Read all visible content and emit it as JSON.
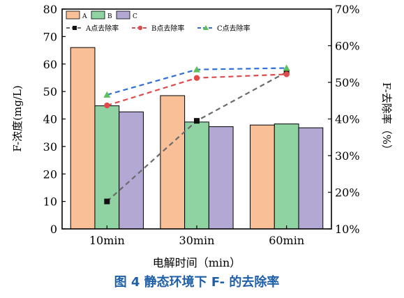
{
  "chart_data": {
    "type": "bar",
    "caption": "图 4   静态环境下 F- 的去除率",
    "xlabel": "电解时间（min）",
    "ylabel": "F-浓度(mg/L)",
    "y2label": "F-去除率（%）",
    "categories": [
      "10min",
      "30min",
      "60min"
    ],
    "ylim": [
      0,
      80
    ],
    "yticks": [
      0,
      10,
      20,
      30,
      40,
      50,
      60,
      70,
      80
    ],
    "y2lim": [
      10,
      70
    ],
    "y2ticks": [
      "10%",
      "20%",
      "30%",
      "40%",
      "50%",
      "60%",
      "70%"
    ],
    "y2tick_values": [
      10,
      20,
      30,
      40,
      50,
      60,
      70
    ],
    "bar_series": [
      {
        "name": "A",
        "values": [
          66.0,
          48.5,
          37.8
        ],
        "color": "#f9bf96"
      },
      {
        "name": "B",
        "values": [
          44.8,
          38.9,
          38.2
        ],
        "color": "#8fd3a2"
      },
      {
        "name": "C",
        "values": [
          42.6,
          37.2,
          36.8
        ],
        "color": "#b3a8d3"
      }
    ],
    "line_series": [
      {
        "name": "A点去除率",
        "values": [
          17.5,
          39.5,
          52.8
        ],
        "color": "#6b6b6b",
        "marker": "square"
      },
      {
        "name": "B点去除率",
        "values": [
          43.7,
          51.2,
          52.2
        ],
        "color": "#e04a4a",
        "marker": "circle"
      },
      {
        "name": "C点去除率",
        "values": [
          46.6,
          53.5,
          53.9
        ],
        "color": "#2f6fd6",
        "marker": "triangle",
        "marker_color": "#5cc05c"
      }
    ],
    "legend": "top-left"
  }
}
